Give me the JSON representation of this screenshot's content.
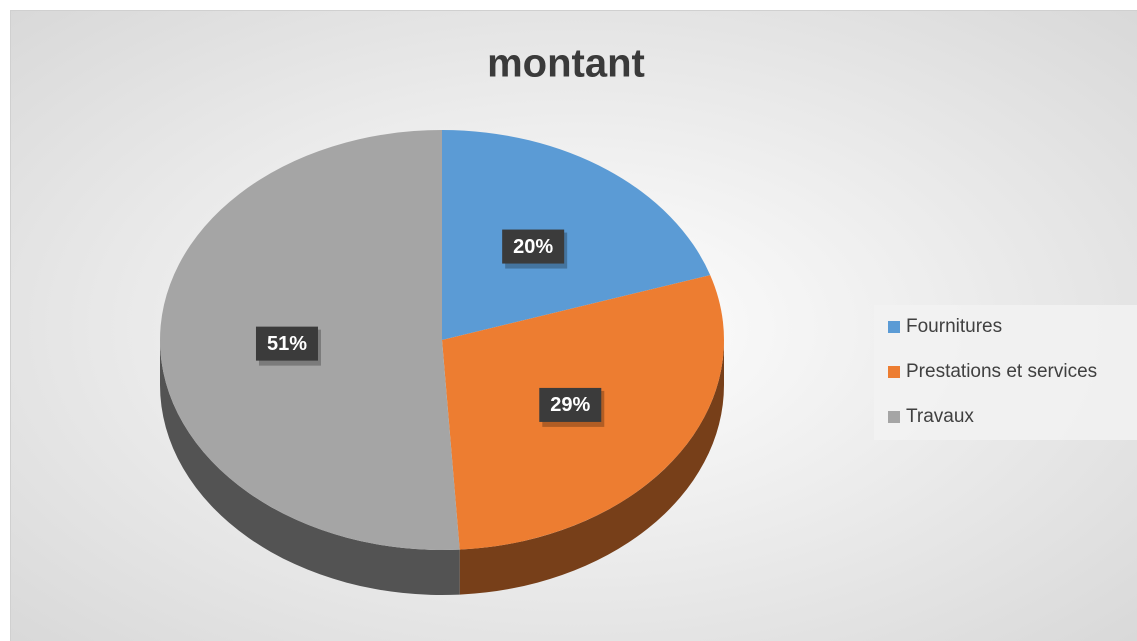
{
  "chart_data": {
    "type": "pie",
    "title": "montant",
    "categories": [
      "Fournitures",
      "Prestations et services",
      "Travaux"
    ],
    "values": [
      20,
      29,
      51
    ],
    "value_labels": [
      "20%",
      "29%",
      "51%"
    ],
    "colors": [
      "#5b9bd5",
      "#ed7d31",
      "#a5a5a5"
    ],
    "legend": "right"
  }
}
